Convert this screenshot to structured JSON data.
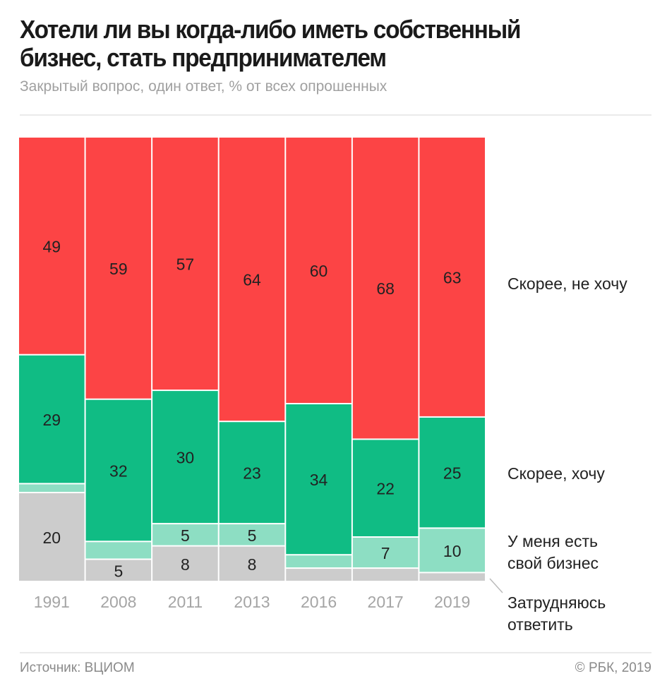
{
  "header": {
    "title_line1": "Хотели ли вы когда-либо иметь собственный",
    "title_line2": "бизнес, стать предпринимателем",
    "subtitle": "Закрытый вопрос, один ответ, % от всех опрошенных"
  },
  "footer": {
    "source": "Источник: ВЦИОМ",
    "copyright": "© РБК, 2019"
  },
  "chart_data": {
    "type": "bar",
    "stacked": true,
    "title": "Хотели ли вы когда-либо иметь собственный бизнес, стать предпринимателем",
    "subtitle": "Закрытый вопрос, один ответ, % от всех опрошенных",
    "categories": [
      "1991",
      "2008",
      "2011",
      "2013",
      "2016",
      "2017",
      "2019"
    ],
    "ylim": [
      0,
      100
    ],
    "grid": false,
    "legend_placement": "right",
    "series": [
      {
        "name": "Затрудняюсь ответить",
        "color": "#cccccc",
        "values": [
          20,
          5,
          8,
          8,
          3,
          3,
          2
        ],
        "labeled": [
          true,
          true,
          true,
          true,
          false,
          false,
          false
        ]
      },
      {
        "name": "У меня есть свой бизнес",
        "color": "#8ddec3",
        "values": [
          2,
          4,
          5,
          5,
          3,
          7,
          10
        ],
        "labeled": [
          false,
          false,
          true,
          true,
          false,
          true,
          true
        ]
      },
      {
        "name": "Скорее, хочу",
        "color": "#10bc84",
        "values": [
          29,
          32,
          30,
          23,
          34,
          22,
          25
        ],
        "labeled": [
          true,
          true,
          true,
          true,
          true,
          true,
          true
        ]
      },
      {
        "name": "Скорее, не хочу",
        "color": "#fc4445",
        "values": [
          49,
          59,
          57,
          64,
          60,
          68,
          63
        ],
        "labeled": [
          true,
          true,
          true,
          true,
          true,
          true,
          true
        ]
      }
    ],
    "legend_lines": [
      [
        "Скорее, не хочу"
      ],
      [
        "Скорее, хочу"
      ],
      [
        "У меня есть",
        "свой бизнес"
      ],
      [
        "Затрудняюсь",
        "ответить"
      ]
    ]
  }
}
